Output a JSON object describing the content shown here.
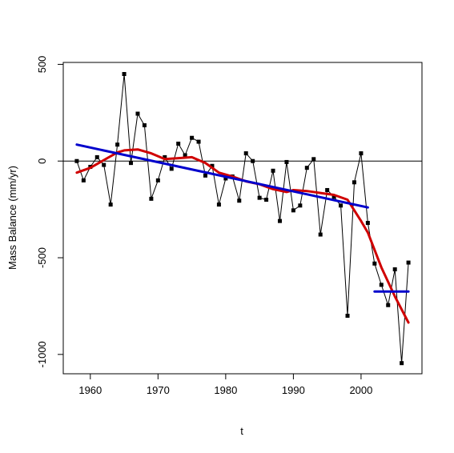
{
  "chart_data": {
    "type": "line",
    "xlabel": "t",
    "ylabel": "Mass Balance (mm/yr)",
    "xlim": [
      1956,
      2009
    ],
    "ylim": [
      -1100,
      510
    ],
    "xticks": [
      1960,
      1970,
      1980,
      1990,
      2000
    ],
    "xtick_labels": [
      "1960",
      "1970",
      "1980",
      "1990",
      "2000"
    ],
    "yticks": [
      500,
      0,
      -500,
      -1000
    ],
    "ytick_labels": [
      "500",
      "0",
      "-500",
      "-1000"
    ],
    "reference_line_y": 0,
    "grid": false,
    "series": [
      {
        "color": "#000000",
        "style": "line-with-square-markers",
        "x": [
          1958,
          1959,
          1960,
          1961,
          1962,
          1963,
          1964,
          1965,
          1966,
          1967,
          1968,
          1969,
          1970,
          1971,
          1972,
          1973,
          1974,
          1975,
          1976,
          1977,
          1978,
          1979,
          1980,
          1981,
          1982,
          1983,
          1984,
          1985,
          1986,
          1987,
          1988,
          1989,
          1990,
          1991,
          1992,
          1993,
          1994,
          1995,
          1996,
          1997,
          1998,
          1999,
          2000,
          2001,
          2002,
          2003,
          2004,
          2005,
          2006,
          2007
        ],
        "values": [
          0,
          -100,
          -30,
          20,
          -20,
          -225,
          85,
          450,
          -10,
          245,
          185,
          -195,
          -100,
          20,
          -40,
          90,
          30,
          120,
          100,
          -75,
          -25,
          -225,
          -90,
          -80,
          -205,
          40,
          0,
          -190,
          -200,
          -50,
          -310,
          -5,
          -255,
          -230,
          -35,
          10,
          -380,
          -150,
          -185,
          -230,
          -800,
          -110,
          40,
          -320,
          -530,
          -640,
          -745,
          -560,
          -1045,
          -525
        ]
      },
      {
        "color": "#d00000",
        "style": "smooth-line",
        "x": [
          1958,
          1960,
          1962,
          1964,
          1965,
          1967,
          1969,
          1971,
          1973,
          1975,
          1977,
          1979,
          1981,
          1983,
          1985,
          1987,
          1989,
          1990,
          1992,
          1994,
          1996,
          1998,
          2000,
          2001,
          2003,
          2005,
          2007
        ],
        "values": [
          -60,
          -35,
          5,
          45,
          55,
          60,
          40,
          10,
          15,
          20,
          -10,
          -60,
          -80,
          -105,
          -120,
          -145,
          -160,
          -150,
          -155,
          -165,
          -175,
          -200,
          -310,
          -370,
          -550,
          -700,
          -835
        ]
      },
      {
        "color": "#0000cc",
        "style": "regression-line",
        "x": [
          1958,
          2001
        ],
        "values": [
          85,
          -240
        ]
      },
      {
        "color": "#0000cc",
        "style": "regression-line",
        "x": [
          2002,
          2007
        ],
        "values": [
          -675,
          -675
        ]
      }
    ]
  }
}
